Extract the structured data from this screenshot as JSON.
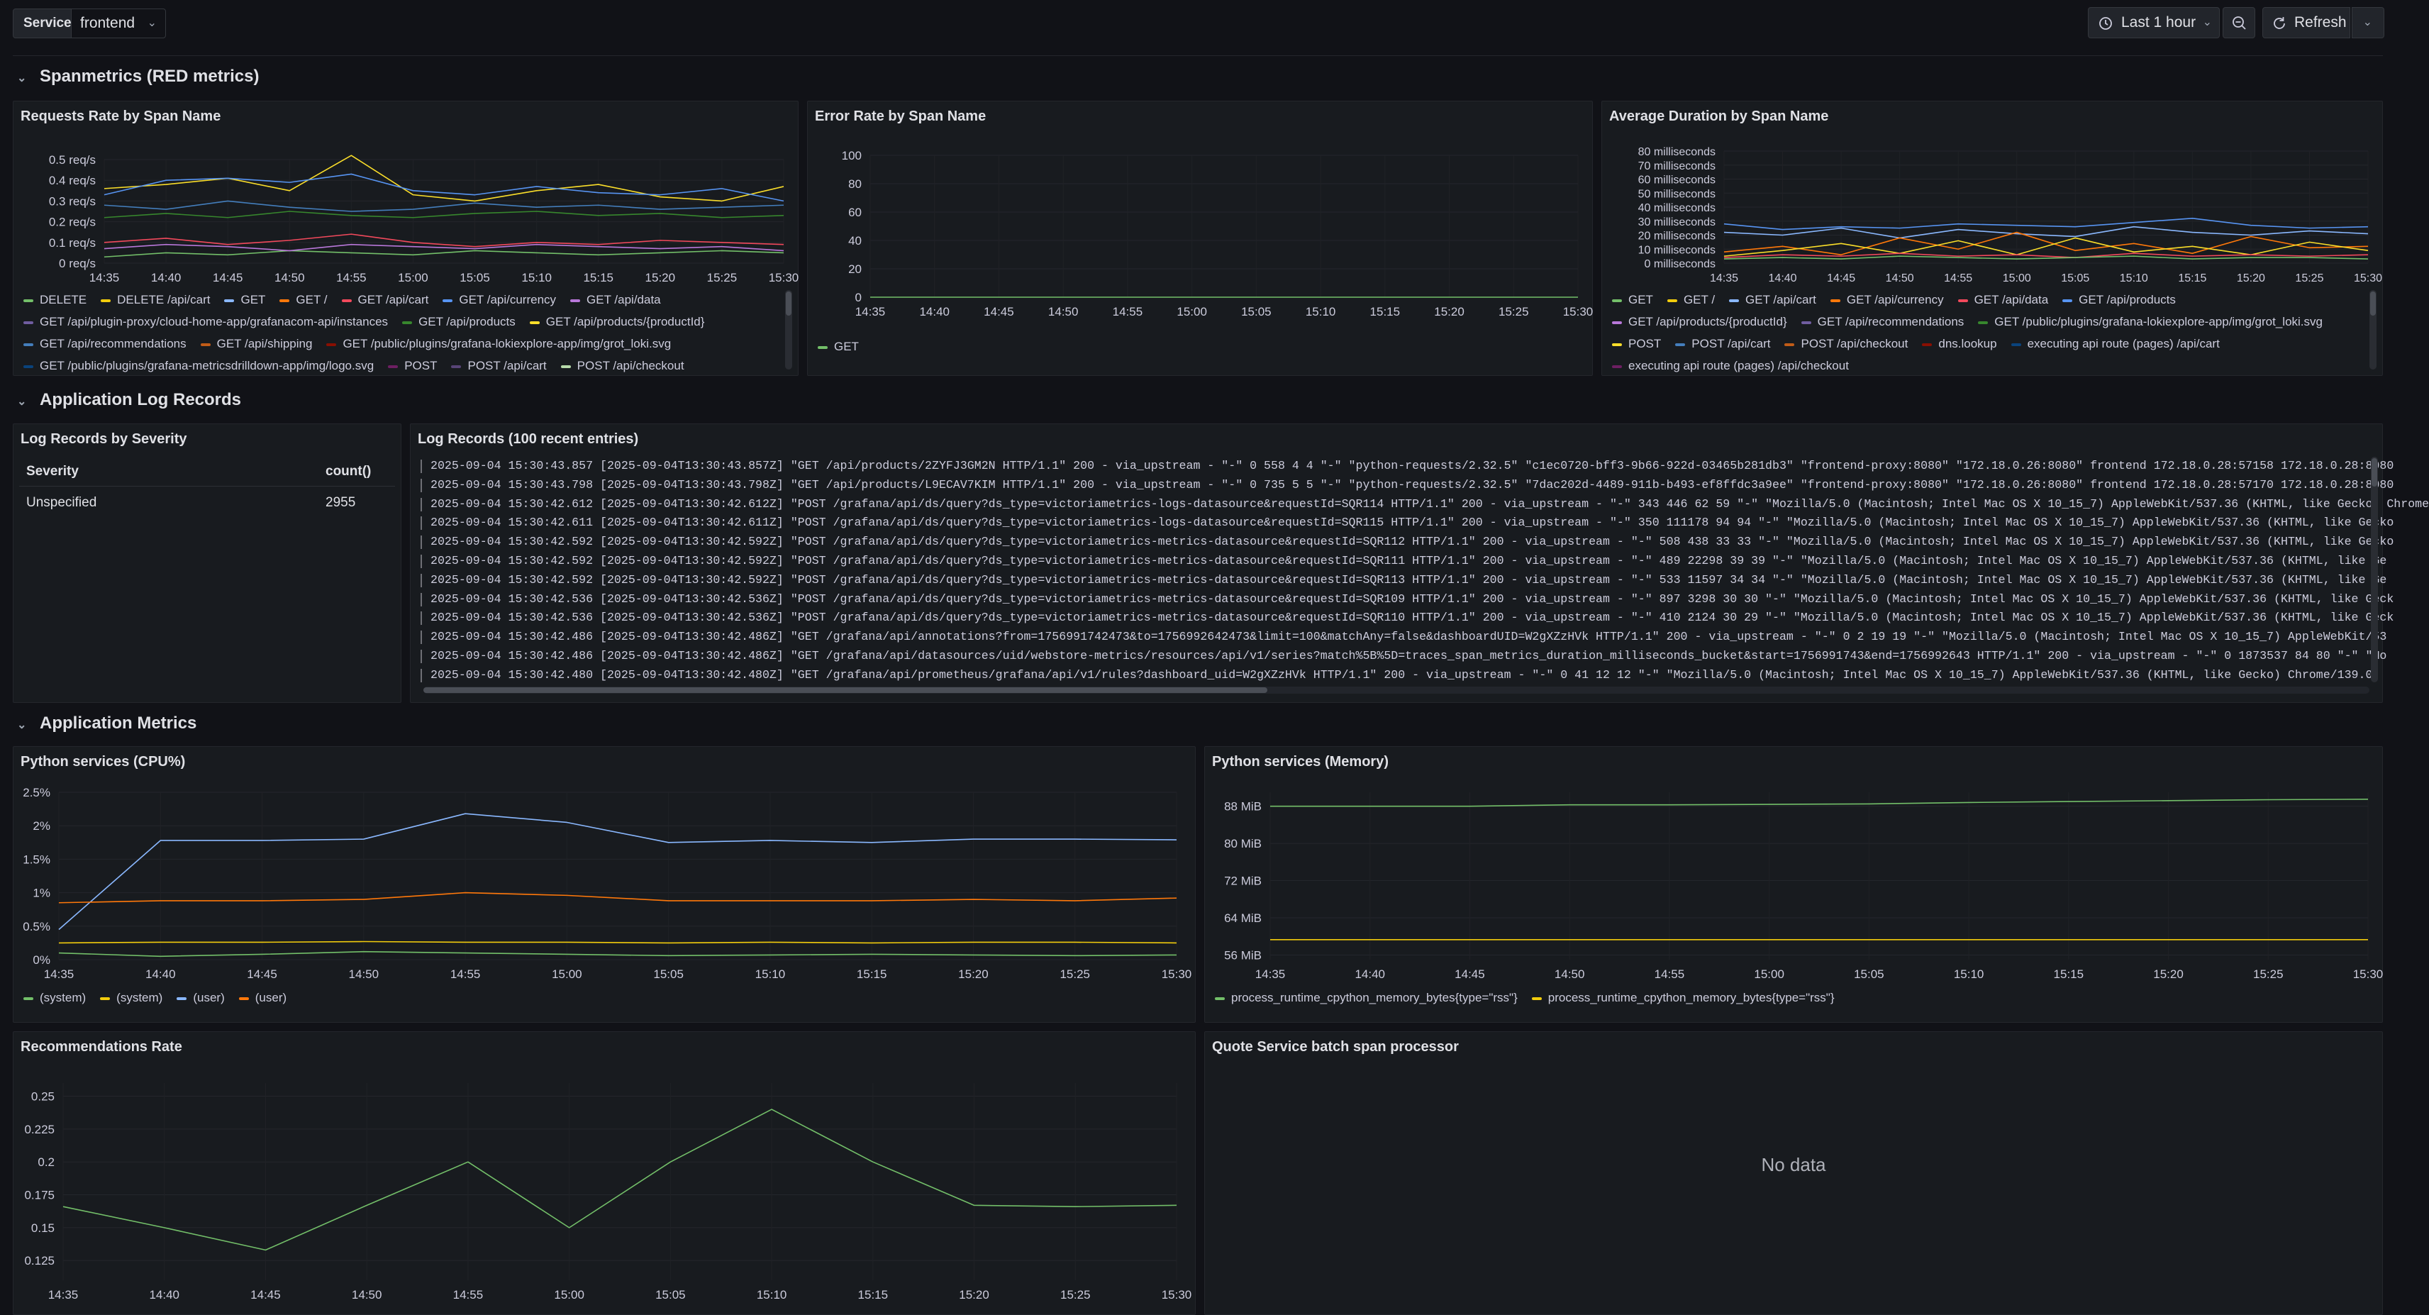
{
  "topbar": {
    "service_label": "Service",
    "service_value": "frontend",
    "time_range": "Last 1 hour",
    "refresh_label": "Refresh"
  },
  "rows": {
    "spanmetrics": "Spanmetrics (RED metrics)",
    "logs": "Application Log Records",
    "metrics": "Application Metrics"
  },
  "panels": {
    "requests_rate": {
      "title": "Requests Rate by Span Name",
      "legend": [
        {
          "label": "DELETE",
          "color": "#73bf69"
        },
        {
          "label": "DELETE /api/cart",
          "color": "#f2cc0c"
        },
        {
          "label": "GET",
          "color": "#8ab8ff"
        },
        {
          "label": "GET /",
          "color": "#ff780a"
        },
        {
          "label": "GET /api/cart",
          "color": "#f2495c"
        },
        {
          "label": "GET /api/currency",
          "color": "#5794f2"
        },
        {
          "label": "GET /api/data",
          "color": "#b877d9"
        },
        {
          "label": "GET /api/plugin-proxy/cloud-home-app/grafanacom-api/instances",
          "color": "#705da0"
        },
        {
          "label": "GET /api/products",
          "color": "#37872d"
        },
        {
          "label": "GET /api/products/{productId}",
          "color": "#fade2a"
        },
        {
          "label": "GET /api/recommendations",
          "color": "#447ebc"
        },
        {
          "label": "GET /api/shipping",
          "color": "#c15c17"
        },
        {
          "label": "GET /public/plugins/grafana-lokiexplore-app/img/grot_loki.svg",
          "color": "#890f02"
        },
        {
          "label": "GET /public/plugins/grafana-metricsdrilldown-app/img/logo.svg",
          "color": "#0a437c"
        },
        {
          "label": "POST",
          "color": "#6d1f62"
        },
        {
          "label": "POST /api/cart",
          "color": "#584477"
        },
        {
          "label": "POST /api/checkout",
          "color": "#b7dbab"
        }
      ]
    },
    "error_rate": {
      "title": "Error Rate by Span Name",
      "legend": [
        {
          "label": "GET",
          "color": "#73bf69"
        }
      ]
    },
    "avg_duration": {
      "title": "Average Duration by Span Name",
      "legend": [
        {
          "label": "GET",
          "color": "#73bf69"
        },
        {
          "label": "GET /",
          "color": "#f2cc0c"
        },
        {
          "label": "GET /api/cart",
          "color": "#8ab8ff"
        },
        {
          "label": "GET /api/currency",
          "color": "#ff780a"
        },
        {
          "label": "GET /api/data",
          "color": "#f2495c"
        },
        {
          "label": "GET /api/products",
          "color": "#5794f2"
        },
        {
          "label": "GET /api/products/{productId}",
          "color": "#b877d9"
        },
        {
          "label": "GET /api/recommendations",
          "color": "#705da0"
        },
        {
          "label": "GET /public/plugins/grafana-lokiexplore-app/img/grot_loki.svg",
          "color": "#37872d"
        },
        {
          "label": "POST",
          "color": "#fade2a"
        },
        {
          "label": "POST /api/cart",
          "color": "#447ebc"
        },
        {
          "label": "POST /api/checkout",
          "color": "#c15c17"
        },
        {
          "label": "dns.lookup",
          "color": "#890f02"
        },
        {
          "label": "executing api route (pages) /api/cart",
          "color": "#0a437c"
        },
        {
          "label": "executing api route (pages) /api/checkout",
          "color": "#6d1f62"
        }
      ]
    },
    "logs_by_severity": {
      "title": "Log Records by Severity",
      "columns": [
        "Severity",
        "count()"
      ],
      "rows": [
        [
          "Unspecified",
          "2955"
        ]
      ]
    },
    "log_records": {
      "title": "Log Records (100 recent entries)",
      "lines": [
        "2025-09-04 15:30:43.857 [2025-09-04T13:30:43.857Z] \"GET /api/products/2ZYFJ3GM2N HTTP/1.1\" 200 - via_upstream - \"-\" 0 558 4 4 \"-\" \"python-requests/2.32.5\" \"c1ec0720-bff3-9b66-922d-03465b281db3\" \"frontend-proxy:8080\" \"172.18.0.26:8080\" frontend 172.18.0.28:57158 172.18.0.28:8080",
        "2025-09-04 15:30:43.798 [2025-09-04T13:30:43.798Z] \"GET /api/products/L9ECAV7KIM HTTP/1.1\" 200 - via_upstream - \"-\" 0 735 5 5 \"-\" \"python-requests/2.32.5\" \"7dac202d-4489-911b-b493-ef8ffdc3a9ee\" \"frontend-proxy:8080\" \"172.18.0.26:8080\" frontend 172.18.0.28:57170 172.18.0.28:8080",
        "2025-09-04 15:30:42.612 [2025-09-04T13:30:42.612Z] \"POST /grafana/api/ds/query?ds_type=victoriametrics-logs-datasource&requestId=SQR114 HTTP/1.1\" 200 - via_upstream - \"-\" 343 446 62 59 \"-\" \"Mozilla/5.0 (Macintosh; Intel Mac OS X 10_15_7) AppleWebKit/537.36 (KHTML, like Gecko) Chrome",
        "2025-09-04 15:30:42.611 [2025-09-04T13:30:42.611Z] \"POST /grafana/api/ds/query?ds_type=victoriametrics-logs-datasource&requestId=SQR115 HTTP/1.1\" 200 - via_upstream - \"-\" 350 111178 94 94 \"-\" \"Mozilla/5.0 (Macintosh; Intel Mac OS X 10_15_7) AppleWebKit/537.36 (KHTML, like Gecko",
        "2025-09-04 15:30:42.592 [2025-09-04T13:30:42.592Z] \"POST /grafana/api/ds/query?ds_type=victoriametrics-metrics-datasource&requestId=SQR112 HTTP/1.1\" 200 - via_upstream - \"-\" 508 438 33 33 \"-\" \"Mozilla/5.0 (Macintosh; Intel Mac OS X 10_15_7) AppleWebKit/537.36 (KHTML, like Gecko",
        "2025-09-04 15:30:42.592 [2025-09-04T13:30:42.592Z] \"POST /grafana/api/ds/query?ds_type=victoriametrics-metrics-datasource&requestId=SQR111 HTTP/1.1\" 200 - via_upstream - \"-\" 489 22298 39 39 \"-\" \"Mozilla/5.0 (Macintosh; Intel Mac OS X 10_15_7) AppleWebKit/537.36 (KHTML, like Ge",
        "2025-09-04 15:30:42.592 [2025-09-04T13:30:42.592Z] \"POST /grafana/api/ds/query?ds_type=victoriametrics-metrics-datasource&requestId=SQR113 HTTP/1.1\" 200 - via_upstream - \"-\" 533 11597 34 34 \"-\" \"Mozilla/5.0 (Macintosh; Intel Mac OS X 10_15_7) AppleWebKit/537.36 (KHTML, like Ge",
        "2025-09-04 15:30:42.536 [2025-09-04T13:30:42.536Z] \"POST /grafana/api/ds/query?ds_type=victoriametrics-metrics-datasource&requestId=SQR109 HTTP/1.1\" 200 - via_upstream - \"-\" 897 3298 30 30 \"-\" \"Mozilla/5.0 (Macintosh; Intel Mac OS X 10_15_7) AppleWebKit/537.36 (KHTML, like Geck",
        "2025-09-04 15:30:42.536 [2025-09-04T13:30:42.536Z] \"POST /grafana/api/ds/query?ds_type=victoriametrics-metrics-datasource&requestId=SQR110 HTTP/1.1\" 200 - via_upstream - \"-\" 410 2124 30 29 \"-\" \"Mozilla/5.0 (Macintosh; Intel Mac OS X 10_15_7) AppleWebKit/537.36 (KHTML, like Geck",
        "2025-09-04 15:30:42.486 [2025-09-04T13:30:42.486Z] \"GET /grafana/api/annotations?from=1756991742473&to=1756992642473&limit=100&matchAny=false&dashboardUID=W2gXZzHVk HTTP/1.1\" 200 - via_upstream - \"-\" 0 2 19 19 \"-\" \"Mozilla/5.0 (Macintosh; Intel Mac OS X 10_15_7) AppleWebKit/53",
        "2025-09-04 15:30:42.486 [2025-09-04T13:30:42.486Z] \"GET /grafana/api/datasources/uid/webstore-metrics/resources/api/v1/series?match%5B%5D=traces_span_metrics_duration_milliseconds_bucket&start=1756991743&end=1756992643 HTTP/1.1\" 200 - via_upstream - \"-\" 0 1873537 84 80 \"-\" \"Mo",
        "2025-09-04 15:30:42.480 [2025-09-04T13:30:42.480Z] \"GET /grafana/api/prometheus/grafana/api/v1/rules?dashboard_uid=W2gXZzHVk HTTP/1.1\" 200 - via_upstream - \"-\" 0 41 12 12 \"-\" \"Mozilla/5.0 (Macintosh; Intel Mac OS X 10_15_7) AppleWebKit/537.36 (KHTML, like Gecko) Chrome/139.0"
      ]
    },
    "py_cpu": {
      "title": "Python services (CPU%)",
      "legend": [
        {
          "label": "(system)",
          "color": "#73bf69"
        },
        {
          "label": "(system)",
          "color": "#f2cc0c"
        },
        {
          "label": "(user)",
          "color": "#8ab8ff"
        },
        {
          "label": "(user)",
          "color": "#ff780a"
        }
      ]
    },
    "py_mem": {
      "title": "Python services (Memory)",
      "legend": [
        {
          "label": "process_runtime_cpython_memory_bytes{type=\"rss\"}",
          "color": "#73bf69"
        },
        {
          "label": "process_runtime_cpython_memory_bytes{type=\"rss\"}",
          "color": "#f2cc0c"
        }
      ]
    },
    "reco_rate": {
      "title": "Recommendations Rate"
    },
    "quote_batch": {
      "title": "Quote Service batch span processor",
      "no_data": "No data"
    }
  },
  "chart_data": [
    {
      "id": "requests_rate",
      "type": "line",
      "x": [
        "14:35",
        "14:40",
        "14:45",
        "14:50",
        "14:55",
        "15:00",
        "15:05",
        "15:10",
        "15:15",
        "15:20",
        "15:25",
        "15:30"
      ],
      "yticks": [
        "0 req/s",
        "0.1 req/s",
        "0.2 req/s",
        "0.3 req/s",
        "0.4 req/s",
        "0.5 req/s"
      ],
      "ylim": [
        0,
        0.5
      ],
      "series": [
        {
          "name": "DELETE",
          "color": "#73bf69",
          "values": [
            0.03,
            0.05,
            0.04,
            0.06,
            0.05,
            0.04,
            0.06,
            0.05,
            0.04,
            0.05,
            0.06,
            0.05
          ]
        },
        {
          "name": "GET /api/products/{productId}",
          "color": "#fade2a",
          "values": [
            0.36,
            0.38,
            0.41,
            0.35,
            0.52,
            0.33,
            0.3,
            0.35,
            0.38,
            0.32,
            0.3,
            0.37
          ]
        },
        {
          "name": "GET /api/products",
          "color": "#37872d",
          "values": [
            0.22,
            0.24,
            0.22,
            0.25,
            0.23,
            0.22,
            0.24,
            0.25,
            0.23,
            0.24,
            0.22,
            0.23
          ]
        },
        {
          "name": "GET /api/currency",
          "color": "#5794f2",
          "values": [
            0.33,
            0.4,
            0.41,
            0.39,
            0.43,
            0.35,
            0.33,
            0.37,
            0.34,
            0.33,
            0.36,
            0.3
          ]
        },
        {
          "name": "GET /api/cart",
          "color": "#f2495c",
          "values": [
            0.1,
            0.12,
            0.09,
            0.11,
            0.14,
            0.1,
            0.08,
            0.1,
            0.09,
            0.11,
            0.1,
            0.09
          ]
        },
        {
          "name": "GET /api/recommendations",
          "color": "#447ebc",
          "values": [
            0.28,
            0.26,
            0.3,
            0.27,
            0.25,
            0.26,
            0.29,
            0.27,
            0.28,
            0.26,
            0.27,
            0.28
          ]
        },
        {
          "name": "GET /api/data",
          "color": "#b877d9",
          "values": [
            0.07,
            0.09,
            0.08,
            0.06,
            0.09,
            0.08,
            0.07,
            0.09,
            0.08,
            0.07,
            0.08,
            0.06
          ]
        }
      ]
    },
    {
      "id": "error_rate",
      "type": "line",
      "x": [
        "14:35",
        "14:40",
        "14:45",
        "14:50",
        "14:55",
        "15:00",
        "15:05",
        "15:10",
        "15:15",
        "15:20",
        "15:25",
        "15:30"
      ],
      "yticks": [
        "0",
        "20",
        "40",
        "60",
        "80",
        "100"
      ],
      "ylim": [
        0,
        100
      ],
      "series": [
        {
          "name": "GET",
          "color": "#73bf69",
          "values": [
            0,
            0,
            0,
            0,
            0,
            0,
            0,
            0,
            0,
            0,
            0,
            0
          ]
        }
      ]
    },
    {
      "id": "avg_duration",
      "type": "line",
      "x": [
        "14:35",
        "14:40",
        "14:45",
        "14:50",
        "14:55",
        "15:00",
        "15:05",
        "15:10",
        "15:15",
        "15:20",
        "15:25",
        "15:30"
      ],
      "yticks": [
        "0 milliseconds",
        "10 milliseconds",
        "20 milliseconds",
        "30 milliseconds",
        "40 milliseconds",
        "50 milliseconds",
        "60 milliseconds",
        "70 milliseconds",
        "80 milliseconds"
      ],
      "ylim": [
        0,
        80
      ],
      "series": [
        {
          "name": "GET /api/products",
          "color": "#5794f2",
          "values": [
            28,
            24,
            26,
            25,
            28,
            27,
            26,
            29,
            32,
            27,
            25,
            26
          ]
        },
        {
          "name": "GET /api/cart",
          "color": "#8ab8ff",
          "values": [
            22,
            20,
            25,
            18,
            24,
            21,
            19,
            26,
            22,
            20,
            23,
            21
          ]
        },
        {
          "name": "GET /api/currency",
          "color": "#ff780a",
          "values": [
            8,
            12,
            6,
            18,
            10,
            22,
            9,
            14,
            7,
            19,
            11,
            12
          ]
        },
        {
          "name": "POST",
          "color": "#fade2a",
          "values": [
            5,
            9,
            14,
            7,
            16,
            6,
            18,
            8,
            12,
            6,
            15,
            9
          ]
        },
        {
          "name": "GET /api/data",
          "color": "#f2495c",
          "values": [
            4,
            6,
            5,
            7,
            5,
            6,
            4,
            7,
            5,
            6,
            5,
            6
          ]
        },
        {
          "name": "GET",
          "color": "#73bf69",
          "values": [
            3,
            4,
            3,
            5,
            4,
            3,
            4,
            5,
            3,
            4,
            4,
            3
          ]
        }
      ]
    },
    {
      "id": "py_cpu",
      "type": "line",
      "x": [
        "14:35",
        "14:40",
        "14:45",
        "14:50",
        "14:55",
        "15:00",
        "15:05",
        "15:10",
        "15:15",
        "15:20",
        "15:25",
        "15:30"
      ],
      "yticks": [
        "0%",
        "0.5%",
        "1%",
        "1.5%",
        "2%",
        "2.5%"
      ],
      "ylim": [
        0,
        2.5
      ],
      "series": [
        {
          "name": "(system)",
          "color": "#73bf69",
          "values": [
            0.1,
            0.05,
            0.08,
            0.12,
            0.1,
            0.08,
            0.06,
            0.07,
            0.08,
            0.07,
            0.06,
            0.07
          ]
        },
        {
          "name": "(system)",
          "color": "#f2cc0c",
          "values": [
            0.25,
            0.26,
            0.26,
            0.27,
            0.26,
            0.26,
            0.25,
            0.26,
            0.25,
            0.26,
            0.26,
            0.25
          ]
        },
        {
          "name": "(user)",
          "color": "#8ab8ff",
          "values": [
            0.45,
            1.78,
            1.78,
            1.8,
            2.18,
            2.05,
            1.75,
            1.78,
            1.75,
            1.8,
            1.8,
            1.79
          ]
        },
        {
          "name": "(user)",
          "color": "#ff780a",
          "values": [
            0.85,
            0.88,
            0.88,
            0.9,
            1.0,
            0.96,
            0.88,
            0.88,
            0.88,
            0.9,
            0.88,
            0.92
          ]
        }
      ]
    },
    {
      "id": "py_mem",
      "type": "line",
      "x": [
        "14:35",
        "14:40",
        "14:45",
        "14:50",
        "14:55",
        "15:00",
        "15:05",
        "15:10",
        "15:15",
        "15:20",
        "15:25",
        "15:30"
      ],
      "yticks": [
        "56 MiB",
        "64 MiB",
        "72 MiB",
        "80 MiB",
        "88 MiB"
      ],
      "ylim": [
        55,
        91
      ],
      "series": [
        {
          "name": "process_runtime_cpython_memory_bytes{type=\"rss\"}",
          "color": "#73bf69",
          "values": [
            88,
            88,
            88,
            88.3,
            88.3,
            88.4,
            88.5,
            88.8,
            89,
            89.2,
            89.4,
            89.5
          ]
        },
        {
          "name": "process_runtime_cpython_memory_bytes{type=\"rss\"}",
          "color": "#f2cc0c",
          "values": [
            59.3,
            59.3,
            59.3,
            59.3,
            59.3,
            59.3,
            59.3,
            59.3,
            59.3,
            59.3,
            59.3,
            59.3
          ]
        }
      ]
    },
    {
      "id": "reco_rate",
      "type": "line",
      "x": [
        "14:35",
        "14:40",
        "14:45",
        "14:50",
        "14:55",
        "15:00",
        "15:05",
        "15:10",
        "15:15",
        "15:20",
        "15:25",
        "15:30"
      ],
      "yticks": [
        "0.125",
        "0.15",
        "0.175",
        "0.2",
        "0.225",
        "0.25"
      ],
      "ylim": [
        0.11,
        0.26
      ],
      "series": [
        {
          "name": "",
          "color": "#73bf69",
          "values": [
            0.166,
            0.15,
            0.133,
            0.167,
            0.2,
            0.15,
            0.2,
            0.24,
            0.2,
            0.167,
            0.166,
            0.167
          ]
        }
      ]
    }
  ]
}
